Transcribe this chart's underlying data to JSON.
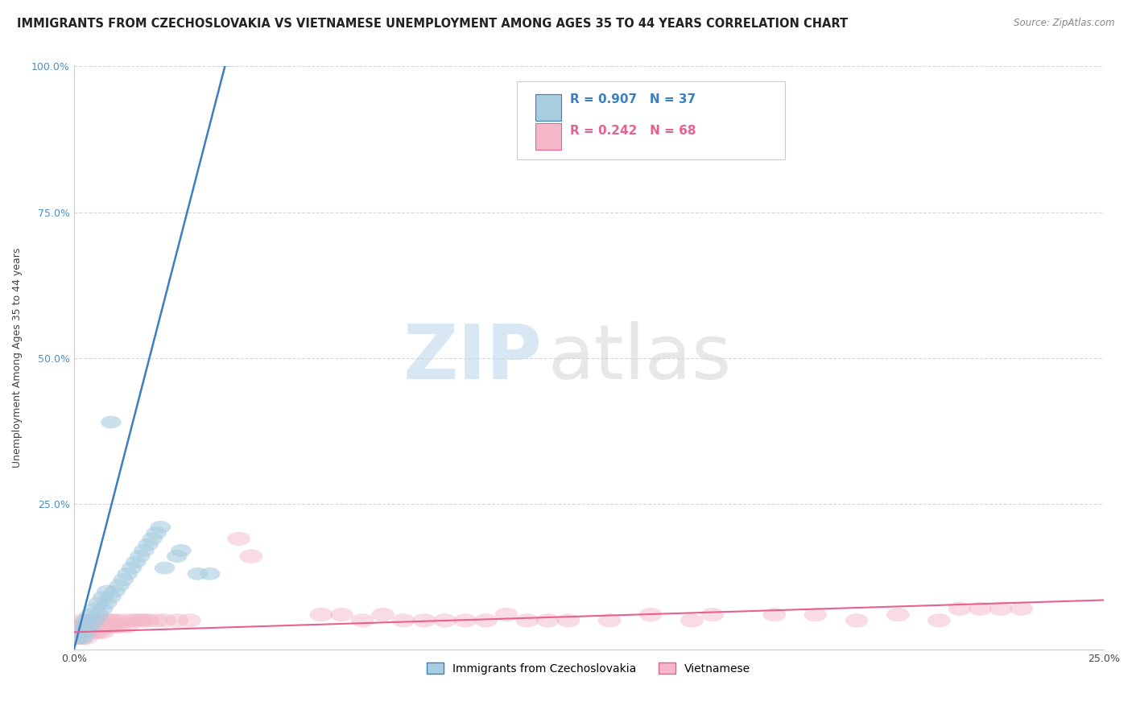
{
  "title": "IMMIGRANTS FROM CZECHOSLOVAKIA VS VIETNAMESE UNEMPLOYMENT AMONG AGES 35 TO 44 YEARS CORRELATION CHART",
  "source": "Source: ZipAtlas.com",
  "ylabel_label": "Unemployment Among Ages 35 to 44 years",
  "legend_label1": "Immigrants from Czechoslovakia",
  "legend_label2": "Vietnamese",
  "R1": 0.907,
  "N1": 37,
  "R2": 0.242,
  "N2": 68,
  "color1": "#a8cce0",
  "color2": "#f4b8c8",
  "line_color1": "#3a7fc1",
  "line_color2": "#e86090",
  "background_color": "#ffffff",
  "watermark_zip": "ZIP",
  "watermark_atlas": "atlas",
  "xlim": [
    0.0,
    0.25
  ],
  "ylim": [
    0.0,
    1.0
  ],
  "grid_color": "#cccccc",
  "title_fontsize": 10.5,
  "axis_label_fontsize": 9,
  "tick_label_fontsize": 9,
  "ytick_color": "#4a90c4",
  "xtick_color": "#444444"
}
